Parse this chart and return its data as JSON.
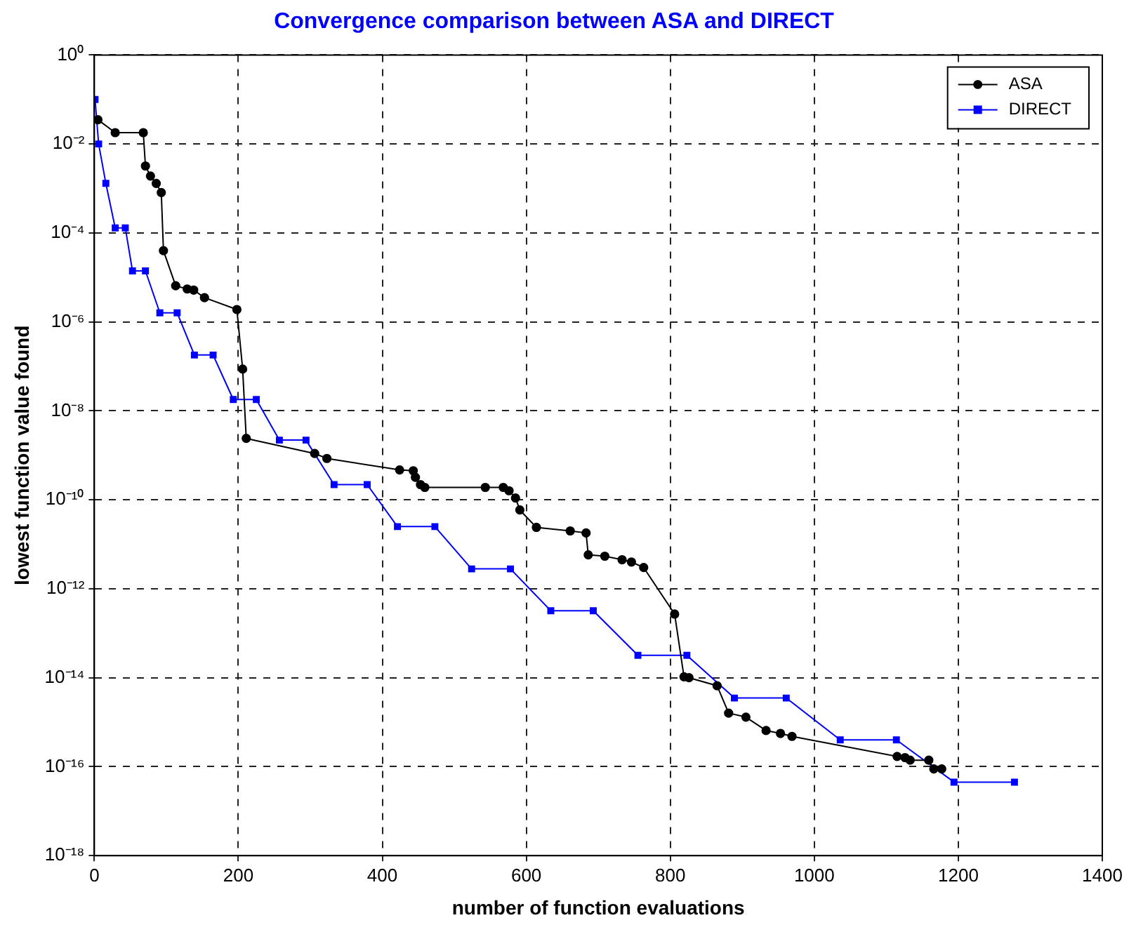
{
  "chart_data": {
    "type": "line",
    "title": "Convergence comparison between ASA and DIRECT",
    "xlabel": "number of function evaluations",
    "ylabel": "lowest function value found",
    "log": "y",
    "grid": true,
    "legend": "top right",
    "line_style": "solid",
    "xlim": [
      0,
      1400
    ],
    "xticks": [
      0,
      200,
      400,
      600,
      800,
      1000,
      1200,
      1400
    ],
    "ylim": [
      1e-18,
      1
    ],
    "yticks": [
      {
        "value": 1,
        "label": "10⁰"
      },
      {
        "value": 0.01,
        "label": "10⁻²"
      },
      {
        "value": 0.0001,
        "label": "10⁻⁴"
      },
      {
        "value": 1e-06,
        "label": "10⁻⁶"
      },
      {
        "value": 1e-08,
        "label": "10⁻⁸"
      },
      {
        "value": 1e-10,
        "label": "10⁻¹⁰"
      },
      {
        "value": 1e-12,
        "label": "10⁻¹²"
      },
      {
        "value": 1e-14,
        "label": "10⁻¹⁴"
      },
      {
        "value": 1e-16,
        "label": "10⁻¹⁶"
      },
      {
        "value": 1e-18,
        "label": "10⁻¹⁸"
      }
    ],
    "series": [
      {
        "name": "ASA",
        "color": "#000000",
        "marker": "circle",
        "x": [
          5,
          29,
          68,
          71,
          78,
          86,
          93,
          96,
          113,
          129,
          138,
          153,
          198,
          206,
          211,
          306,
          323,
          424,
          443,
          446,
          453,
          459,
          543,
          568,
          576,
          585,
          591,
          614,
          661,
          683,
          686,
          709,
          733,
          746,
          763,
          806,
          819,
          826,
          865,
          881,
          905,
          933,
          953,
          969,
          1115,
          1126,
          1133,
          1159,
          1166,
          1177
        ],
        "values": [
          0.035,
          0.018,
          0.018,
          0.0032,
          0.0019,
          0.0013,
          0.00081,
          4e-05,
          6.5e-06,
          5.5e-06,
          5.2e-06,
          3.5e-06,
          1.9e-06,
          8.7e-08,
          2.4e-09,
          1.1e-09,
          8.5e-10,
          4.7e-10,
          4.5e-10,
          3.2e-10,
          2.2e-10,
          1.9e-10,
          1.9e-10,
          1.9e-10,
          1.6e-10,
          1.1e-10,
          5.9e-11,
          2.4e-11,
          2e-11,
          1.8e-11,
          5.8e-12,
          5.4e-12,
          4.5e-12,
          4e-12,
          3e-12,
          2.7e-13,
          1.05e-14,
          1e-14,
          6.6e-15,
          1.6e-15,
          1.3e-15,
          6.5e-16,
          5.6e-16,
          4.8e-16,
          1.7e-16,
          1.6e-16,
          1.4e-16,
          1.4e-16,
          8.9e-17,
          8.9e-17
        ]
      },
      {
        "name": "DIRECT",
        "color": "#0000ff",
        "marker": "square",
        "x": [
          1,
          6,
          16,
          29,
          43,
          53,
          71,
          91,
          115,
          139,
          165,
          193,
          225,
          257,
          294,
          333,
          379,
          421,
          473,
          524,
          578,
          634,
          693,
          755,
          823,
          889,
          961,
          1036,
          1114,
          1194,
          1278
        ],
        "values": [
          0.1,
          0.01,
          0.0013,
          0.00013,
          0.00013,
          1.4e-05,
          1.4e-05,
          1.6e-06,
          1.6e-06,
          1.8e-07,
          1.8e-07,
          1.8e-08,
          1.8e-08,
          2.2e-09,
          2.2e-09,
          2.2e-10,
          2.2e-10,
          2.5e-11,
          2.5e-11,
          2.8e-12,
          2.8e-12,
          3.2e-13,
          3.2e-13,
          3.2e-14,
          3.2e-14,
          3.5e-15,
          3.5e-15,
          4e-16,
          4e-16,
          4.5e-17,
          4.5e-17
        ]
      }
    ]
  }
}
